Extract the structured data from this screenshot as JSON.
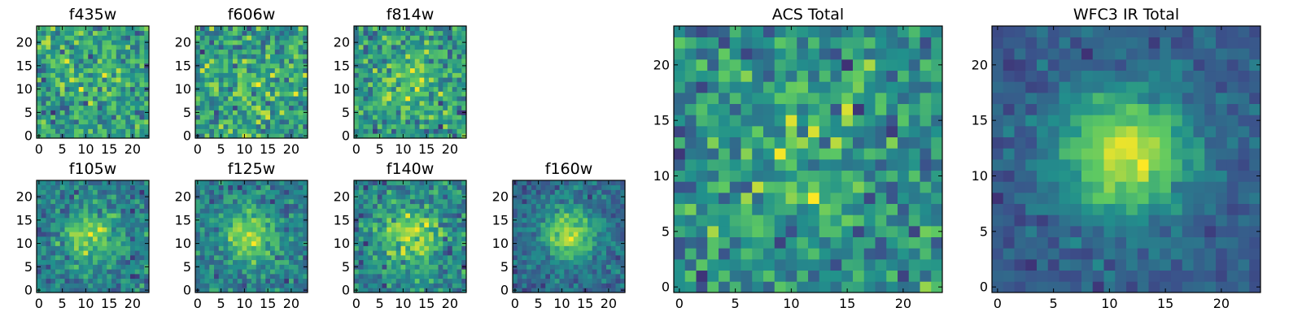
{
  "figure": {
    "colormap": [
      "#440154",
      "#3b528b",
      "#21918c",
      "#5ec962",
      "#fde725"
    ]
  },
  "chart_data": [
    {
      "type": "heatmap",
      "title": "f435w",
      "grid_size": 24,
      "xlim": [
        -0.5,
        23.5
      ],
      "ylim": [
        -0.5,
        23.5
      ],
      "xticks": [
        0,
        5,
        10,
        15,
        20
      ],
      "yticks": [
        0,
        5,
        10,
        15,
        20
      ],
      "peak": [
        11.5,
        11.5
      ],
      "signal": 0.1,
      "noise": 1.0,
      "seed": 11
    },
    {
      "type": "heatmap",
      "title": "f606w",
      "grid_size": 24,
      "xlim": [
        -0.5,
        23.5
      ],
      "ylim": [
        -0.5,
        23.5
      ],
      "xticks": [
        0,
        5,
        10,
        15,
        20
      ],
      "yticks": [
        0,
        5,
        10,
        15,
        20
      ],
      "peak": [
        11.5,
        11.5
      ],
      "signal": 0.1,
      "noise": 1.0,
      "seed": 23
    },
    {
      "type": "heatmap",
      "title": "f814w",
      "grid_size": 24,
      "xlim": [
        -0.5,
        23.5
      ],
      "ylim": [
        -0.5,
        23.5
      ],
      "xticks": [
        0,
        5,
        10,
        15,
        20
      ],
      "yticks": [
        0,
        5,
        10,
        15,
        20
      ],
      "peak": [
        11.5,
        11.5
      ],
      "signal": 0.45,
      "noise": 1.0,
      "seed": 37
    },
    {
      "type": "heatmap",
      "title": "f105w",
      "grid_size": 24,
      "xlim": [
        -0.5,
        23.5
      ],
      "ylim": [
        -0.5,
        23.5
      ],
      "xticks": [
        0,
        5,
        10,
        15,
        20
      ],
      "yticks": [
        0,
        5,
        10,
        15,
        20
      ],
      "peak": [
        11.5,
        11.5
      ],
      "signal": 0.8,
      "noise": 0.8,
      "seed": 41
    },
    {
      "type": "heatmap",
      "title": "f125w",
      "grid_size": 24,
      "xlim": [
        -0.5,
        23.5
      ],
      "ylim": [
        -0.5,
        23.5
      ],
      "xticks": [
        0,
        5,
        10,
        15,
        20
      ],
      "yticks": [
        0,
        5,
        10,
        15,
        20
      ],
      "peak": [
        11.5,
        11.5
      ],
      "signal": 0.9,
      "noise": 0.8,
      "seed": 53
    },
    {
      "type": "heatmap",
      "title": "f140w",
      "grid_size": 24,
      "xlim": [
        -0.5,
        23.5
      ],
      "ylim": [
        -0.5,
        23.5
      ],
      "xticks": [
        0,
        5,
        10,
        15,
        20
      ],
      "yticks": [
        0,
        5,
        10,
        15,
        20
      ],
      "peak": [
        11.5,
        11.5
      ],
      "signal": 0.85,
      "noise": 0.8,
      "seed": 67
    },
    {
      "type": "heatmap",
      "title": "f160w",
      "grid_size": 24,
      "xlim": [
        -0.5,
        23.5
      ],
      "ylim": [
        -0.5,
        23.5
      ],
      "xticks": [
        0,
        5,
        10,
        15,
        20
      ],
      "yticks": [
        0,
        5,
        10,
        15,
        20
      ],
      "peak": [
        11.5,
        12
      ],
      "signal": 1.3,
      "noise": 0.7,
      "seed": 79
    },
    {
      "type": "heatmap",
      "title": "ACS Total",
      "grid_size": 24,
      "xlim": [
        -0.5,
        23.5
      ],
      "ylim": [
        -0.5,
        23.5
      ],
      "xticks": [
        0,
        5,
        10,
        15,
        20
      ],
      "yticks": [
        0,
        5,
        10,
        15,
        20
      ],
      "peak": [
        11.5,
        12
      ],
      "signal": 0.35,
      "noise": 0.9,
      "seed": 83
    },
    {
      "type": "heatmap",
      "title": "WFC3 IR Total",
      "grid_size": 24,
      "xlim": [
        -0.5,
        23.5
      ],
      "ylim": [
        -0.5,
        23.5
      ],
      "xticks": [
        0,
        5,
        10,
        15,
        20
      ],
      "yticks": [
        0,
        5,
        10,
        15,
        20
      ],
      "peak": [
        11.5,
        12
      ],
      "signal": 1.8,
      "noise": 0.55,
      "seed": 97
    }
  ]
}
